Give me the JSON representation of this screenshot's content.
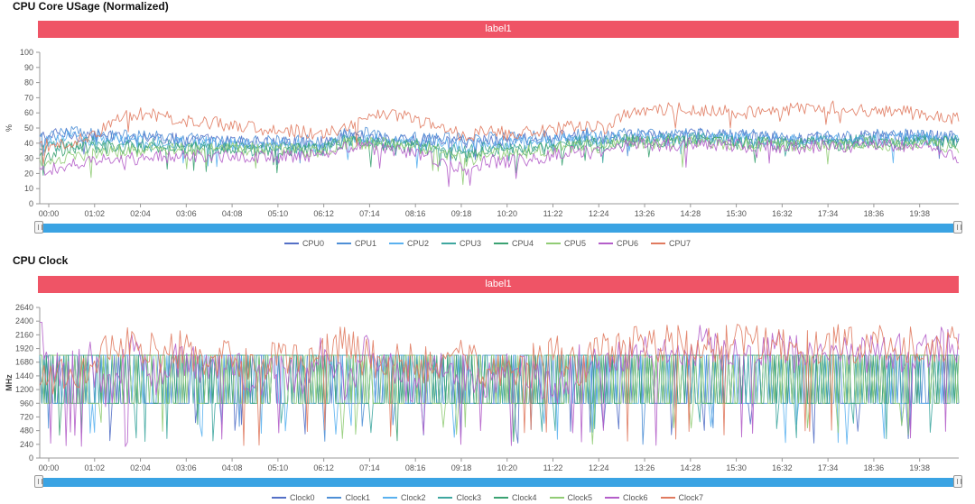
{
  "chart_data": [
    {
      "type": "line",
      "title": "CPU Core USage (Normalized)",
      "banner": "label1",
      "xlabel": "",
      "ylabel": "%",
      "ylim": [
        0,
        100
      ],
      "yticks": [
        0,
        10,
        20,
        30,
        40,
        50,
        60,
        70,
        80,
        90,
        100
      ],
      "x_ticks": [
        "00:00",
        "01:02",
        "02:04",
        "03:06",
        "04:08",
        "05:10",
        "06:12",
        "07:14",
        "08:16",
        "09:18",
        "10:20",
        "11:22",
        "12:24",
        "13:26",
        "14:28",
        "15:30",
        "16:32",
        "17:34",
        "18:36",
        "19:38"
      ],
      "series": [
        {
          "name": "CPU0",
          "color": "#5470c6",
          "values": [
            44,
            46,
            45,
            44,
            43,
            44,
            42,
            42,
            41,
            41,
            40,
            40,
            40,
            45,
            44,
            43,
            42,
            42,
            41,
            42,
            42,
            43,
            44,
            45,
            44,
            45,
            44,
            44,
            46,
            45,
            44,
            43,
            42,
            43,
            42,
            44,
            44,
            45,
            44,
            44
          ]
        },
        {
          "name": "CPU1",
          "color": "#4e8fd6",
          "values": [
            43,
            48,
            47,
            45,
            44,
            45,
            43,
            42,
            42,
            41,
            41,
            41,
            41,
            46,
            46,
            44,
            43,
            43,
            43,
            43,
            43,
            44,
            44,
            46,
            45,
            46,
            45,
            45,
            47,
            46,
            45,
            44,
            43,
            44,
            43,
            45,
            45,
            45,
            45,
            44
          ]
        },
        {
          "name": "CPU2",
          "color": "#5ab1ef",
          "values": [
            40,
            44,
            43,
            42,
            41,
            41,
            40,
            40,
            39,
            39,
            39,
            39,
            38,
            42,
            42,
            41,
            40,
            39,
            38,
            40,
            40,
            41,
            42,
            43,
            42,
            44,
            43,
            43,
            44,
            43,
            42,
            42,
            41,
            42,
            41,
            43,
            42,
            43,
            42,
            42
          ]
        },
        {
          "name": "CPU3",
          "color": "#3fa7a0",
          "values": [
            35,
            40,
            40,
            39,
            38,
            39,
            37,
            37,
            37,
            36,
            36,
            36,
            36,
            42,
            41,
            40,
            39,
            37,
            34,
            37,
            37,
            38,
            40,
            41,
            41,
            43,
            42,
            42,
            43,
            42,
            41,
            41,
            40,
            41,
            40,
            42,
            41,
            42,
            41,
            41
          ]
        },
        {
          "name": "CPU4",
          "color": "#3ba272",
          "values": [
            30,
            36,
            37,
            37,
            37,
            38,
            37,
            37,
            37,
            36,
            36,
            36,
            36,
            41,
            40,
            39,
            38,
            35,
            31,
            35,
            35,
            36,
            38,
            39,
            39,
            42,
            41,
            41,
            42,
            41,
            40,
            40,
            39,
            40,
            39,
            41,
            40,
            41,
            40,
            40
          ]
        },
        {
          "name": "CPU5",
          "color": "#91cc75",
          "values": [
            28,
            30,
            33,
            34,
            35,
            36,
            36,
            36,
            36,
            36,
            36,
            35,
            35,
            40,
            40,
            39,
            38,
            33,
            28,
            33,
            33,
            35,
            37,
            38,
            38,
            41,
            40,
            40,
            41,
            40,
            39,
            39,
            38,
            39,
            38,
            40,
            39,
            40,
            39,
            38
          ]
        },
        {
          "name": "CPU6",
          "color": "#b45ec9",
          "values": [
            22,
            25,
            28,
            30,
            30,
            31,
            31,
            31,
            31,
            31,
            31,
            31,
            31,
            38,
            37,
            35,
            34,
            28,
            22,
            28,
            28,
            30,
            33,
            34,
            33,
            40,
            39,
            39,
            40,
            39,
            38,
            38,
            37,
            38,
            37,
            39,
            38,
            39,
            38,
            30
          ]
        },
        {
          "name": "CPU7",
          "color": "#e07a5f",
          "values": [
            38,
            40,
            44,
            52,
            60,
            58,
            55,
            54,
            52,
            50,
            49,
            48,
            45,
            50,
            56,
            60,
            55,
            50,
            45,
            48,
            46,
            47,
            50,
            52,
            50,
            60,
            62,
            63,
            62,
            61,
            60,
            62,
            63,
            64,
            63,
            62,
            61,
            60,
            58,
            56
          ]
        }
      ]
    },
    {
      "type": "line",
      "title": "CPU Clock",
      "banner": "label1",
      "xlabel": "",
      "ylabel": "MHz",
      "ylim": [
        0,
        2640
      ],
      "yticks": [
        0,
        240,
        480,
        720,
        960,
        1200,
        1440,
        1680,
        1920,
        2160,
        2400,
        2640
      ],
      "x_ticks": [
        "00:00",
        "01:02",
        "02:04",
        "03:06",
        "04:08",
        "05:10",
        "06:12",
        "07:14",
        "08:16",
        "09:18",
        "10:20",
        "11:22",
        "12:24",
        "13:26",
        "14:28",
        "15:30",
        "16:32",
        "17:34",
        "18:36",
        "19:38"
      ],
      "series": [
        {
          "name": "Clock0",
          "color": "#5470c6",
          "values": [
            1800,
            960,
            1800,
            960,
            1800,
            1800,
            960,
            1800,
            1800,
            960,
            1800,
            960,
            1800,
            1800,
            960,
            1800,
            960,
            1800,
            1800,
            960,
            1800,
            960,
            1800,
            1800,
            960,
            1800,
            1800,
            960,
            1800,
            1800,
            960,
            1800,
            1800,
            960,
            1800,
            1800,
            960,
            1800,
            1800,
            960
          ]
        },
        {
          "name": "Clock1",
          "color": "#4e8fd6",
          "values": [
            960,
            1800,
            960,
            1800,
            960,
            1800,
            1800,
            960,
            1800,
            960,
            1800,
            1800,
            960,
            1800,
            960,
            1800,
            1800,
            960,
            1800,
            960,
            1800,
            1800,
            960,
            1800,
            960,
            1800,
            960,
            1800,
            1800,
            960,
            1800,
            960,
            1800,
            1800,
            960,
            1800,
            960,
            1800,
            960,
            1800
          ]
        },
        {
          "name": "Clock2",
          "color": "#5ab1ef",
          "values": [
            1800,
            1800,
            960,
            1800,
            1800,
            960,
            1800,
            960,
            1800,
            1800,
            960,
            1800,
            960,
            1800,
            1800,
            960,
            1800,
            960,
            1800,
            1800,
            960,
            1800,
            960,
            1800,
            1800,
            960,
            1800,
            960,
            1800,
            960,
            1800,
            1800,
            960,
            1800,
            960,
            1800,
            1800,
            960,
            1800,
            1800
          ]
        },
        {
          "name": "Clock3",
          "color": "#3fa7a0",
          "values": [
            960,
            1800,
            1800,
            960,
            1800,
            960,
            1800,
            1800,
            960,
            1800,
            1800,
            960,
            1800,
            960,
            1800,
            1800,
            960,
            1800,
            960,
            1800,
            1800,
            960,
            1800,
            960,
            1800,
            1800,
            960,
            1800,
            960,
            1800,
            1800,
            960,
            1800,
            960,
            1800,
            960,
            1800,
            1800,
            960,
            1800
          ]
        },
        {
          "name": "Clock4",
          "color": "#3ba272",
          "values": [
            1800,
            960,
            1800,
            1800,
            960,
            1800,
            960,
            1800,
            1800,
            960,
            1800,
            960,
            1800,
            1800,
            960,
            1800,
            1800,
            960,
            1800,
            960,
            1800,
            960,
            1800,
            1800,
            960,
            1800,
            960,
            1800,
            1800,
            960,
            1800,
            960,
            1800,
            1800,
            960,
            1800,
            960,
            1800,
            1800,
            960
          ]
        },
        {
          "name": "Clock5",
          "color": "#91cc75",
          "values": [
            1200,
            1800,
            960,
            1800,
            1800,
            960,
            1800,
            1800,
            960,
            1800,
            960,
            1800,
            1800,
            960,
            1800,
            960,
            1800,
            1800,
            960,
            1800,
            960,
            1800,
            1800,
            960,
            1800,
            960,
            1800,
            1800,
            960,
            1800,
            1800,
            960,
            1800,
            960,
            1800,
            1800,
            960,
            1800,
            960,
            1800
          ]
        },
        {
          "name": "Clock6",
          "color": "#b45ec9",
          "values": [
            2200,
            1400,
            1800,
            1100,
            2000,
            1300,
            1800,
            1500,
            1900,
            1200,
            1700,
            1400,
            1800,
            1300,
            2000,
            1500,
            1200,
            1700,
            1500,
            1300,
            1600,
            1400,
            1200,
            1700,
            1500,
            1900,
            1800,
            1700,
            2000,
            1800,
            1900,
            2000,
            1800,
            1900,
            2000,
            1800,
            1900,
            1800,
            2000,
            1900
          ]
        },
        {
          "name": "Clock7",
          "color": "#e07a5f",
          "values": [
            1500,
            1400,
            1600,
            1900,
            2000,
            1800,
            1900,
            1700,
            1800,
            1600,
            1700,
            1800,
            1900,
            2000,
            1700,
            1800,
            1600,
            1700,
            1800,
            1500,
            1600,
            1700,
            1800,
            1600,
            1900,
            2000,
            2000,
            2000,
            2000,
            2000,
            2000,
            2000,
            2000,
            2000,
            2000,
            2000,
            2000,
            2000,
            2000,
            2000
          ]
        }
      ]
    }
  ],
  "style": {
    "banner_color": "#ef5466",
    "slider_color": "#3aa3e3",
    "axis_color": "#999999",
    "grid_color": "#e0e6f1"
  }
}
